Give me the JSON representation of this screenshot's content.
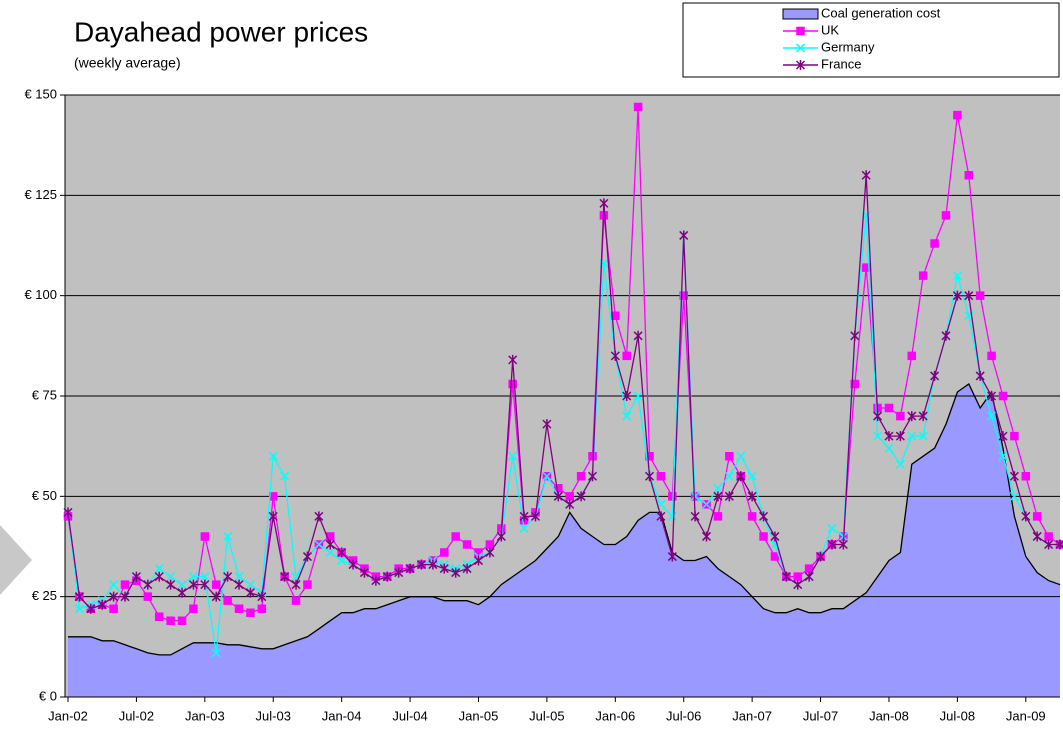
{
  "chart_data": {
    "type": "line",
    "title": "Dayahead power prices",
    "subtitle": "(weekly average)",
    "categories": [
      "Jan-02",
      null,
      null,
      null,
      null,
      null,
      "Jul-02",
      null,
      null,
      null,
      null,
      null,
      "Jan-03",
      null,
      null,
      null,
      null,
      null,
      "Jul-03",
      null,
      null,
      null,
      null,
      null,
      "Jan-04",
      null,
      null,
      null,
      null,
      null,
      "Jul-04",
      null,
      null,
      null,
      null,
      null,
      "Jan-05",
      null,
      null,
      null,
      null,
      null,
      "Jul-05",
      null,
      null,
      null,
      null,
      null,
      "Jan-06",
      null,
      null,
      null,
      null,
      null,
      "Jul-06",
      null,
      null,
      null,
      null,
      null,
      "Jan-07",
      null,
      null,
      null,
      null,
      null,
      "Jul-07",
      null,
      null,
      null,
      null,
      null,
      "Jan-08",
      null,
      null,
      null,
      null,
      null,
      "Jul-08",
      null,
      null,
      null,
      null,
      null,
      "Jan-09",
      null,
      null,
      null
    ],
    "ylim": [
      0,
      150
    ],
    "yticks": [
      {
        "value": 0,
        "label": "€ 0"
      },
      {
        "value": 25,
        "label": "€ 25"
      },
      {
        "value": 50,
        "label": "€ 50"
      },
      {
        "value": 75,
        "label": "€ 75"
      },
      {
        "value": 100,
        "label": "€ 100"
      },
      {
        "value": 125,
        "label": "€ 125"
      },
      {
        "value": 150,
        "label": "€ 150"
      }
    ],
    "grid": true,
    "legend": "top-right",
    "series": [
      {
        "name": "Coal generation cost",
        "kind": "area",
        "color": "#9999ff",
        "values": [
          15,
          15,
          15,
          14,
          14,
          13,
          12,
          11,
          10.5,
          10.5,
          12,
          13.5,
          13.5,
          13.5,
          13,
          13,
          12.5,
          12,
          12,
          13,
          14,
          15,
          17,
          19,
          21,
          21,
          22,
          22,
          23,
          24,
          25,
          25,
          25,
          24,
          24,
          24,
          23,
          25,
          28,
          30,
          32,
          34,
          37,
          40,
          46,
          42,
          40,
          38,
          38,
          40,
          44,
          46,
          46,
          36,
          34,
          34,
          35,
          32,
          30,
          28,
          25,
          22,
          21,
          21,
          22,
          21,
          21,
          22,
          22,
          24,
          26,
          30,
          34,
          36,
          58,
          60,
          62,
          68,
          76,
          78,
          72,
          76,
          62,
          45,
          35,
          31,
          29,
          28
        ]
      },
      {
        "name": "UK",
        "kind": "line",
        "marker": "square",
        "color": "#ff00ff",
        "values": [
          45,
          25,
          22,
          23,
          22,
          28,
          29,
          25,
          20,
          19,
          19,
          22,
          40,
          28,
          24,
          22,
          21,
          22,
          50,
          30,
          24,
          28,
          38,
          40,
          36,
          34,
          32,
          30,
          30,
          32,
          32,
          33,
          34,
          36,
          40,
          38,
          36,
          38,
          42,
          78,
          44,
          46,
          55,
          52,
          50,
          55,
          60,
          120,
          95,
          85,
          147,
          60,
          55,
          50,
          100,
          50,
          48,
          45,
          60,
          55,
          45,
          40,
          35,
          30,
          30,
          32,
          35,
          38,
          40,
          78,
          107,
          72,
          72,
          70,
          85,
          105,
          113,
          120,
          145,
          130,
          100,
          85,
          75,
          65,
          55,
          45,
          40,
          38
        ]
      },
      {
        "name": "Germany",
        "kind": "line",
        "marker": "x",
        "color": "#00ffff",
        "values": [
          46,
          22,
          23,
          24,
          28,
          25,
          30,
          28,
          32,
          30,
          28,
          30,
          30,
          11,
          40,
          30,
          28,
          26,
          60,
          55,
          30,
          35,
          38,
          36,
          34,
          33,
          31,
          29,
          30,
          31,
          32,
          33,
          34,
          33,
          32,
          33,
          35,
          36,
          40,
          60,
          42,
          45,
          55,
          50,
          48,
          50,
          55,
          108,
          85,
          70,
          75,
          55,
          48,
          45,
          115,
          50,
          48,
          52,
          55,
          60,
          55,
          45,
          38,
          30,
          28,
          30,
          35,
          42,
          40,
          90,
          120,
          65,
          62,
          58,
          65,
          65,
          80,
          90,
          105,
          95,
          80,
          70,
          60,
          50,
          45,
          40,
          38,
          38
        ]
      },
      {
        "name": "France",
        "kind": "line",
        "marker": "asterisk",
        "color": "#800080",
        "values": [
          46,
          25,
          22,
          23,
          25,
          25,
          30,
          28,
          30,
          28,
          26,
          28,
          28,
          25,
          30,
          28,
          26,
          25,
          45,
          30,
          28,
          35,
          45,
          38,
          36,
          33,
          31,
          29,
          30,
          31,
          32,
          33,
          33,
          32,
          31,
          32,
          34,
          36,
          40,
          84,
          45,
          45,
          68,
          50,
          48,
          50,
          55,
          123,
          85,
          75,
          90,
          55,
          45,
          35,
          115,
          45,
          40,
          50,
          50,
          55,
          50,
          45,
          40,
          30,
          28,
          30,
          35,
          38,
          38,
          90,
          130,
          70,
          65,
          65,
          70,
          70,
          80,
          90,
          100,
          100,
          80,
          75,
          65,
          55,
          45,
          40,
          38,
          38
        ]
      }
    ]
  }
}
